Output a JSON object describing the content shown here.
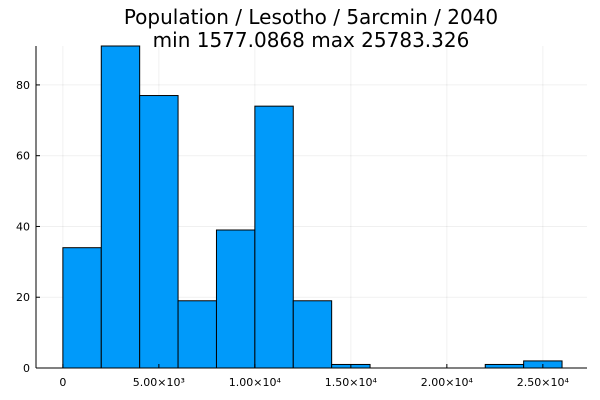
{
  "chart_data": {
    "type": "bar",
    "title": "Population / Lesotho / 5arcmin / 2040",
    "subtitle": "min 1577.0868  max 25783.326",
    "bin_edges": [
      0,
      2000,
      4000,
      6000,
      8000,
      10000,
      12000,
      14000,
      16000,
      18000,
      20000,
      22000,
      24000,
      26000
    ],
    "values": [
      34,
      91,
      77,
      19,
      39,
      74,
      19,
      1,
      0,
      0,
      0,
      1,
      2
    ],
    "xlim": [
      -1400,
      27300
    ],
    "ylim": [
      0,
      91
    ],
    "x_ticks": [
      {
        "value": 0,
        "label": "0"
      },
      {
        "value": 5000,
        "label": "5.00×10³"
      },
      {
        "value": 10000,
        "label": "1.00×10⁴"
      },
      {
        "value": 15000,
        "label": "1.50×10⁴"
      },
      {
        "value": 20000,
        "label": "2.00×10⁴"
      },
      {
        "value": 25000,
        "label": "2.50×10⁴"
      }
    ],
    "y_ticks": [
      {
        "value": 0,
        "label": "0"
      },
      {
        "value": 20,
        "label": "20"
      },
      {
        "value": 40,
        "label": "40"
      },
      {
        "value": 60,
        "label": "60"
      },
      {
        "value": 80,
        "label": "80"
      }
    ],
    "grid": true,
    "legend": false,
    "bar_color": "#009AFA"
  }
}
